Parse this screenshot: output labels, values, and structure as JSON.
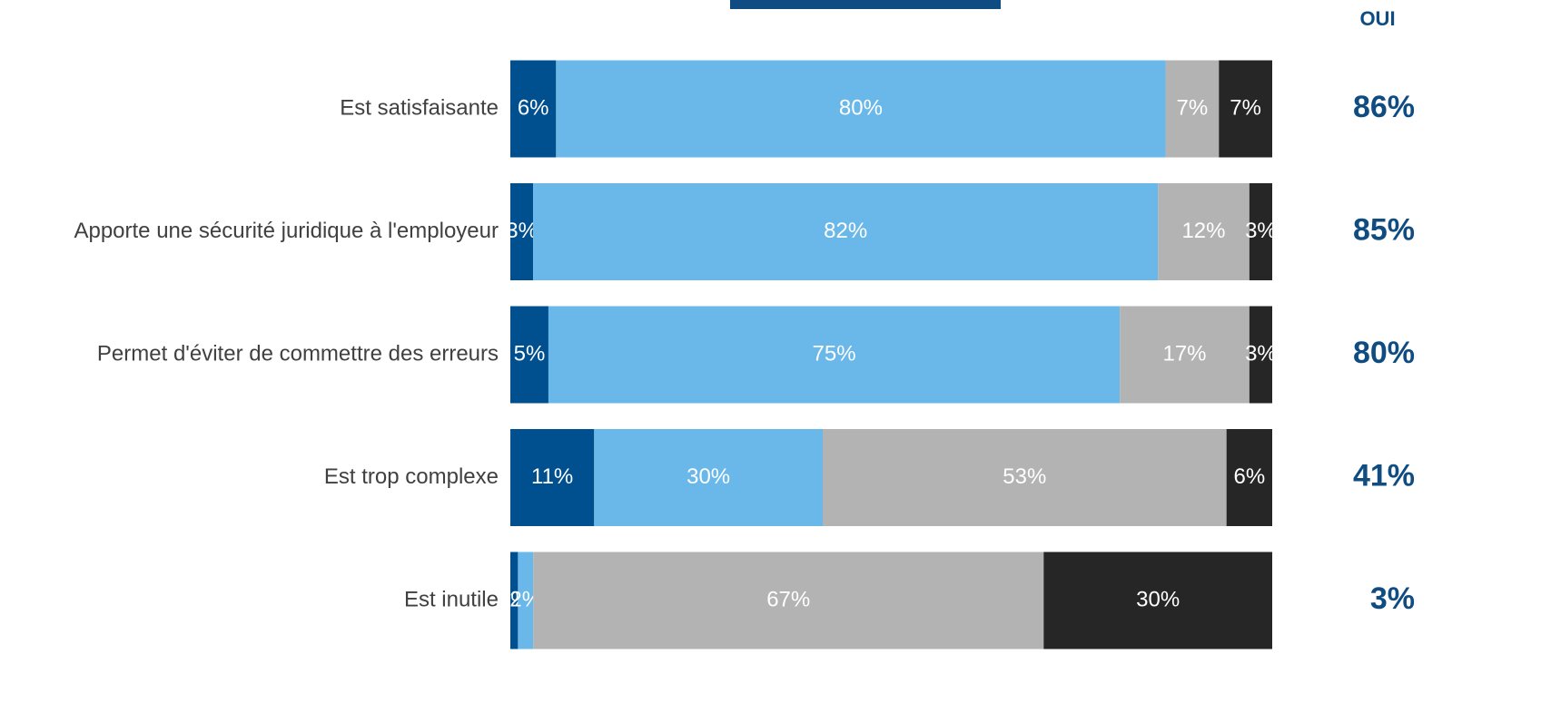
{
  "chart_data": {
    "type": "stacked-bar-horizontal",
    "categories": [
      "Est satisfaisante",
      "Apporte une sécurité juridique à l'employeur",
      "Permet d'éviter de commettre des erreurs",
      "Est trop complexe",
      "Est inutile"
    ],
    "series": [
      {
        "color": "#00508f",
        "values": [
          6,
          3,
          5,
          11,
          1
        ],
        "value_labels": [
          "6%",
          "3%",
          "5%",
          "11%",
          "1%"
        ]
      },
      {
        "color": "#69b8e9",
        "values": [
          80,
          82,
          75,
          30,
          2
        ],
        "value_labels": [
          "80%",
          "82%",
          "75%",
          "30%",
          "2%"
        ]
      },
      {
        "color": "#b3b3b3",
        "values": [
          7,
          12,
          17,
          53,
          67
        ],
        "value_labels": [
          "7%",
          "12%",
          "17%",
          "53%",
          "67%"
        ]
      },
      {
        "color": "#262626",
        "values": [
          7,
          3,
          3,
          6,
          30
        ],
        "value_labels": [
          "7%",
          "3%",
          "3%",
          "6%",
          "30%"
        ]
      }
    ],
    "total_title": "OUI",
    "totals": {
      "values": [
        86,
        85,
        80,
        41,
        3
      ],
      "value_labels": [
        "86%",
        "85%",
        "80%",
        "41%",
        "3%"
      ],
      "color": "#0f4c81"
    }
  }
}
